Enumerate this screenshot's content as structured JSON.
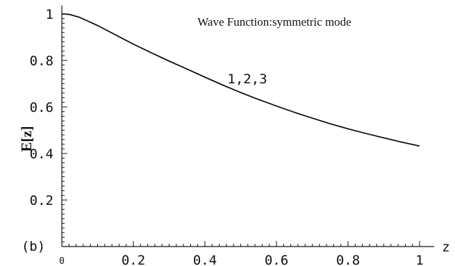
{
  "chart_data": {
    "type": "line",
    "title": "Wave Function:symmetric mode",
    "xlabel": "z",
    "ylabel": "E[z]",
    "panel_label": "(b)",
    "curve_label": "1,2,3",
    "xlim": [
      0,
      1
    ],
    "ylim": [
      0,
      1
    ],
    "x_ticks": [
      {
        "value": 0,
        "label": "0"
      },
      {
        "value": 0.2,
        "label": "0.2"
      },
      {
        "value": 0.4,
        "label": "0.4"
      },
      {
        "value": 0.6,
        "label": "0.6"
      },
      {
        "value": 0.8,
        "label": "0.8"
      },
      {
        "value": 1,
        "label": "1"
      }
    ],
    "y_ticks": [
      {
        "value": 0.2,
        "label": "0.2"
      },
      {
        "value": 0.4,
        "label": "0.4"
      },
      {
        "value": 0.6,
        "label": "0.6"
      },
      {
        "value": 0.8,
        "label": "0.8"
      },
      {
        "value": 1,
        "label": "1"
      }
    ],
    "series": [
      {
        "x": [
          0,
          0.02,
          0.05,
          0.1,
          0.15,
          0.2,
          0.25,
          0.3,
          0.35,
          0.4,
          0.45,
          0.5,
          0.55,
          0.6,
          0.65,
          0.7,
          0.75,
          0.8,
          0.85,
          0.9,
          0.95,
          1
        ],
        "y": [
          1.0,
          0.998,
          0.985,
          0.95,
          0.91,
          0.87,
          0.833,
          0.797,
          0.763,
          0.728,
          0.694,
          0.662,
          0.632,
          0.604,
          0.577,
          0.552,
          0.528,
          0.506,
          0.486,
          0.467,
          0.449,
          0.432
        ]
      }
    ],
    "grid": false,
    "line_color": "#111111"
  }
}
